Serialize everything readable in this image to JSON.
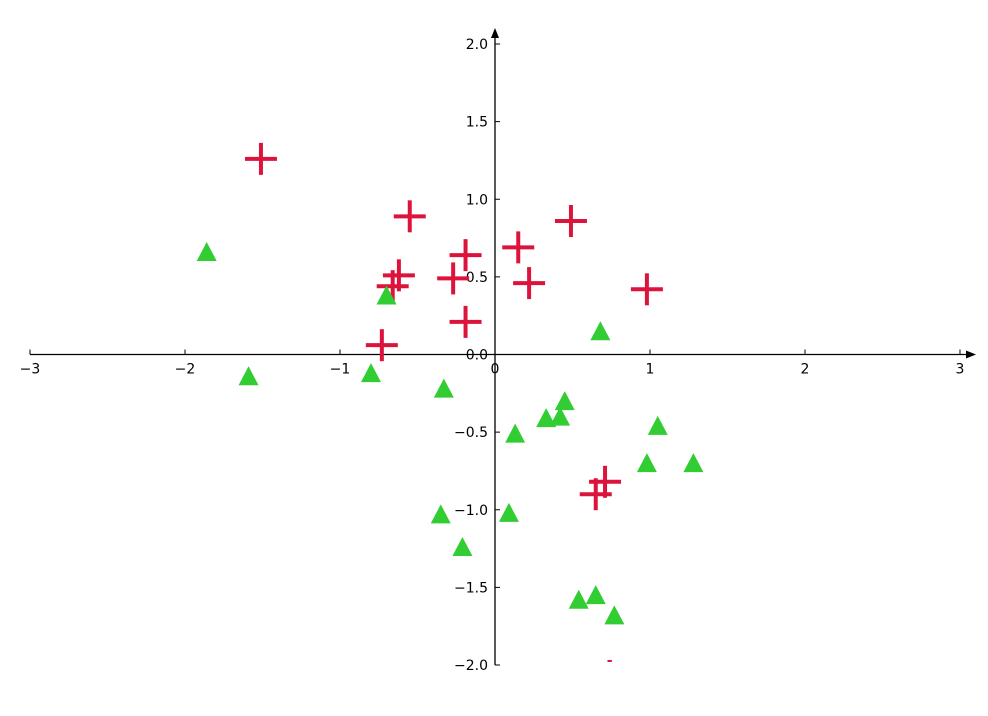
{
  "chart_data": {
    "type": "scatter",
    "title": "",
    "xlabel": "",
    "ylabel": "",
    "xlim": [
      -3,
      3
    ],
    "ylim": [
      -2,
      2
    ],
    "grid": false,
    "legend": "none",
    "axes_style": "centered-at-origin",
    "x_ticks": [
      -3,
      -2,
      -1,
      0,
      1,
      2,
      3
    ],
    "x_tick_labels": [
      "−3",
      "−2",
      "−1",
      "0",
      "1",
      "2",
      "3"
    ],
    "y_ticks": [
      -2.0,
      -1.5,
      -1.0,
      -0.5,
      0.0,
      0.5,
      1.0,
      1.5,
      2.0
    ],
    "y_tick_labels": [
      "−2.0",
      "−1.5",
      "−1.0",
      "−0.5",
      "0.0",
      "0.5",
      "1.0",
      "1.5",
      "2.0"
    ],
    "series": [
      {
        "name": "plus",
        "marker": "plus",
        "color": "#dc143c",
        "points": [
          [
            -1.51,
            1.26
          ],
          [
            -0.55,
            0.89
          ],
          [
            -0.19,
            0.64
          ],
          [
            0.15,
            0.69
          ],
          [
            0.49,
            0.86
          ],
          [
            -0.27,
            0.49
          ],
          [
            0.22,
            0.46
          ],
          [
            -0.62,
            0.51
          ],
          [
            -0.66,
            0.44
          ],
          [
            0.98,
            0.42
          ],
          [
            -0.19,
            0.21
          ],
          [
            -0.73,
            0.06
          ],
          [
            0.71,
            -0.82
          ],
          [
            0.65,
            -0.9
          ]
        ]
      },
      {
        "name": "triangle",
        "marker": "triangle",
        "color": "#32cd32",
        "points": [
          [
            -1.86,
            0.66
          ],
          [
            -0.7,
            0.38
          ],
          [
            0.68,
            0.15
          ],
          [
            -1.59,
            -0.14
          ],
          [
            -0.8,
            -0.12
          ],
          [
            -0.33,
            -0.22
          ],
          [
            0.45,
            -0.3
          ],
          [
            0.33,
            -0.41
          ],
          [
            0.42,
            -0.4
          ],
          [
            1.05,
            -0.46
          ],
          [
            0.13,
            -0.51
          ],
          [
            0.98,
            -0.7
          ],
          [
            1.28,
            -0.7
          ],
          [
            -0.35,
            -1.03
          ],
          [
            0.09,
            -1.02
          ],
          [
            -0.21,
            -1.24
          ],
          [
            0.54,
            -1.58
          ],
          [
            0.65,
            -1.55
          ],
          [
            0.77,
            -1.68
          ]
        ]
      }
    ],
    "annotations": [
      {
        "text": "-",
        "color": "#dc143c",
        "x": 0.74,
        "y": -1.98
      }
    ]
  }
}
